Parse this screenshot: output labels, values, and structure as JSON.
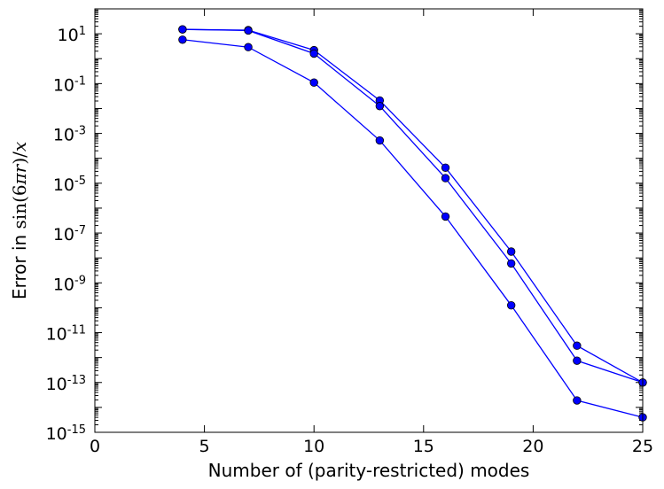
{
  "chart_data": {
    "type": "line",
    "title": "",
    "xlabel": "Number of (parity-restricted) modes",
    "ylabel": {
      "prefix": "Error in ",
      "fn": "sin",
      "open": "(6",
      "pi": "π",
      "var": "r",
      "close": ")/",
      "den": "x"
    },
    "xlim": [
      0,
      25
    ],
    "ylim": [
      1e-15,
      100
    ],
    "yscale": "log",
    "grid": false,
    "xticks": [
      {
        "value": 0,
        "label": "0"
      },
      {
        "value": 5,
        "label": "5"
      },
      {
        "value": 10,
        "label": "10"
      },
      {
        "value": 15,
        "label": "15"
      },
      {
        "value": 20,
        "label": "20"
      },
      {
        "value": 25,
        "label": "25"
      }
    ],
    "yticks": [
      {
        "value": 10.0,
        "base": "10",
        "exp": "1"
      },
      {
        "value": 0.1,
        "base": "10",
        "exp": "-1"
      },
      {
        "value": 0.001,
        "base": "10",
        "exp": "-3"
      },
      {
        "value": 1e-05,
        "base": "10",
        "exp": "-5"
      },
      {
        "value": 1e-07,
        "base": "10",
        "exp": "-7"
      },
      {
        "value": 1e-09,
        "base": "10",
        "exp": "-9"
      },
      {
        "value": 1e-11,
        "base": "10",
        "exp": "-11"
      },
      {
        "value": 1e-13,
        "base": "10",
        "exp": "-13"
      },
      {
        "value": 1e-15,
        "base": "10",
        "exp": "-15"
      }
    ],
    "x": [
      4,
      7,
      10,
      13,
      16,
      19,
      22,
      25
    ],
    "series": [
      {
        "values": [
          15,
          14,
          2.2,
          0.021,
          4.2e-05,
          1.8e-08,
          3e-12,
          1e-13
        ]
      },
      {
        "values": [
          15,
          13.5,
          1.6,
          0.0125,
          1.6e-05,
          6e-09,
          7.5e-13,
          1e-13
        ]
      },
      {
        "values": [
          5.8,
          2.9,
          0.11,
          0.00052,
          4.6e-07,
          1.25e-10,
          1.9e-14,
          4e-15
        ]
      }
    ],
    "colors": {
      "line": "#0000ff",
      "marker": "#0000ff",
      "marker_edge": "#000000",
      "axes": "#000000",
      "background": "#ffffff"
    }
  }
}
